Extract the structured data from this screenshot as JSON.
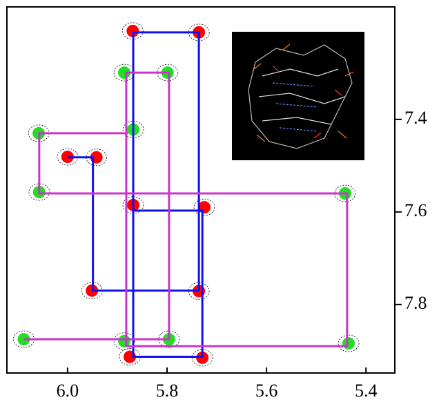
{
  "chart_data": {
    "type": "scatter",
    "xlim": [
      6.122,
      5.342
    ],
    "ylim": [
      7.157,
      7.948
    ],
    "xticks": [
      {
        "value": 6.0,
        "label": "6.0"
      },
      5.8,
      5.6,
      5.4
    ],
    "yticks": [
      7.4,
      7.6,
      7.8
    ],
    "series": [
      {
        "color": "#ff0000",
        "x": [
          5.869,
          5.736,
          6.0,
          5.942,
          5.868,
          5.725,
          5.951,
          5.736,
          5.875,
          5.729
        ],
        "y": [
          7.209,
          7.212,
          7.481,
          7.482,
          7.585,
          7.59,
          7.77,
          7.771,
          7.913,
          7.915
        ]
      },
      {
        "color": "#22dd22",
        "x": [
          5.886,
          5.799,
          6.058,
          5.868,
          6.057,
          5.442,
          6.088,
          5.886,
          5.796,
          5.435
        ],
        "y": [
          7.299,
          7.299,
          7.43,
          7.422,
          7.557,
          7.56,
          7.875,
          7.879,
          7.875,
          7.884
        ]
      }
    ],
    "walks": [
      {
        "color": "#1010ee",
        "x": [
          6.0,
          5.949,
          5.949,
          5.736,
          5.736,
          5.868,
          5.868,
          5.729,
          5.729,
          5.868
        ],
        "y": [
          7.482,
          7.482,
          7.77,
          7.77,
          7.212,
          7.212,
          7.913,
          7.913,
          7.597,
          7.597
        ]
      },
      {
        "color": "#cc33cc",
        "x": [
          6.088,
          5.796,
          5.796,
          5.882,
          5.882,
          5.438,
          5.438,
          6.057,
          6.057,
          5.879
        ],
        "y": [
          7.875,
          7.875,
          7.299,
          7.299,
          7.89,
          7.89,
          7.56,
          7.56,
          7.43,
          7.43
        ]
      }
    ]
  }
}
